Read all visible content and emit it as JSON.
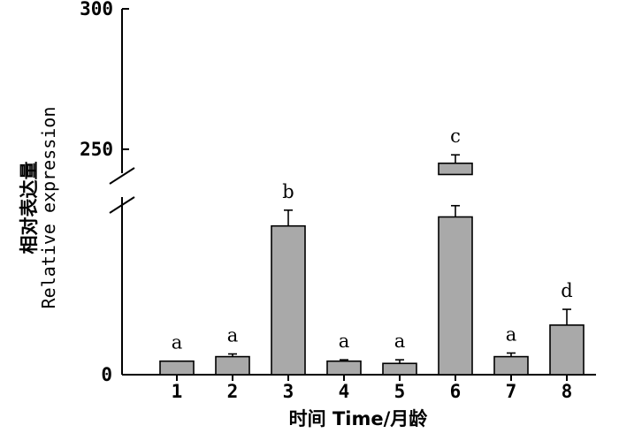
{
  "chart_data": {
    "type": "bar",
    "xlabel": "时间 Time/月龄",
    "ylabel_cn": "相对表达量",
    "ylabel_en": "Relative expression",
    "categories": [
      "1",
      "2",
      "3",
      "4",
      "5",
      "6",
      "7",
      "8"
    ],
    "values": [
      3,
      4,
      33,
      3,
      2.5,
      35,
      4,
      11
    ],
    "errors": [
      0,
      0.6,
      3.5,
      0.3,
      0.8,
      2.5,
      0.8,
      3.5
    ],
    "significance": [
      "a",
      "a",
      "b",
      "a",
      "a",
      "c",
      "a",
      "d"
    ],
    "bar_6_upper_segment": {
      "from": 241,
      "to": 245,
      "error_to": 248
    },
    "y_axis": {
      "lower_segment": {
        "range": [
          0,
          40
        ],
        "tick_labels": [
          "0"
        ]
      },
      "upper_segment": {
        "range": [
          238,
          300
        ],
        "tick_labels": [
          "250",
          "300"
        ]
      },
      "broken": true
    },
    "bar_color": "#a9a9a9",
    "grid": false
  }
}
